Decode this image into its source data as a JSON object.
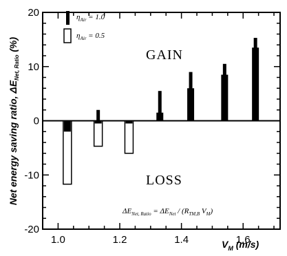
{
  "chart_data": {
    "type": "bar",
    "x": [
      1.03,
      1.13,
      1.23,
      1.33,
      1.43,
      1.54,
      1.64
    ],
    "xlabel": "V_M (m/s)",
    "ylabel": "Net energy saving ratio, ΔE_Net, Ratio (%)",
    "xlim": [
      0.95,
      1.72
    ],
    "ylim": [
      -20,
      20
    ],
    "xticks": [
      "1.0",
      "1.2",
      "1.4",
      "1.6"
    ],
    "yticks": [
      "20",
      "10",
      "0",
      "-10",
      "-20"
    ],
    "grid": false,
    "legend_position": "top-left",
    "series": [
      {
        "name": "η_Air = 1.0",
        "style": "solid",
        "color": "#000000",
        "values": [
          -2,
          -0.5,
          -0.5,
          1.5,
          6,
          8.5,
          13.5
        ],
        "error_high": [
          -1.5,
          2,
          -0.3,
          5.5,
          9,
          10.5,
          15.3
        ]
      },
      {
        "name": "η_Air = 0.5",
        "style": "hollow",
        "color": "#000000",
        "values": [
          -11.7,
          -4.7,
          -6,
          0,
          0,
          0,
          0
        ]
      }
    ],
    "annotations": {
      "gain": "GAIN",
      "loss": "LOSS",
      "formula": "ΔE_Net, Ratio = ΔE_Net / (R_TM,B V_M)"
    }
  },
  "labels": {
    "xlabel_main": "V",
    "xlabel_sub": "M",
    "xlabel_unit": " (m/s)",
    "ylabel_main": "Net energy saving ratio, ΔE",
    "ylabel_sub": "Net, Ratio",
    "ylabel_unit": " (%)",
    "legend1_eta": "η",
    "legend1_sub": "Air",
    "legend1_val": " = 1.0",
    "legend2_eta": "η",
    "legend2_sub": "Air",
    "legend2_val": " = 0.5",
    "formula_a": "ΔE",
    "formula_a_sub": "Net, Ratio",
    "formula_b": " = ΔE",
    "formula_b_sub": "Net",
    "formula_c": " / (R",
    "formula_c_sub": "TM,B",
    "formula_d": " V",
    "formula_d_sub": "M",
    "formula_e": ")"
  }
}
